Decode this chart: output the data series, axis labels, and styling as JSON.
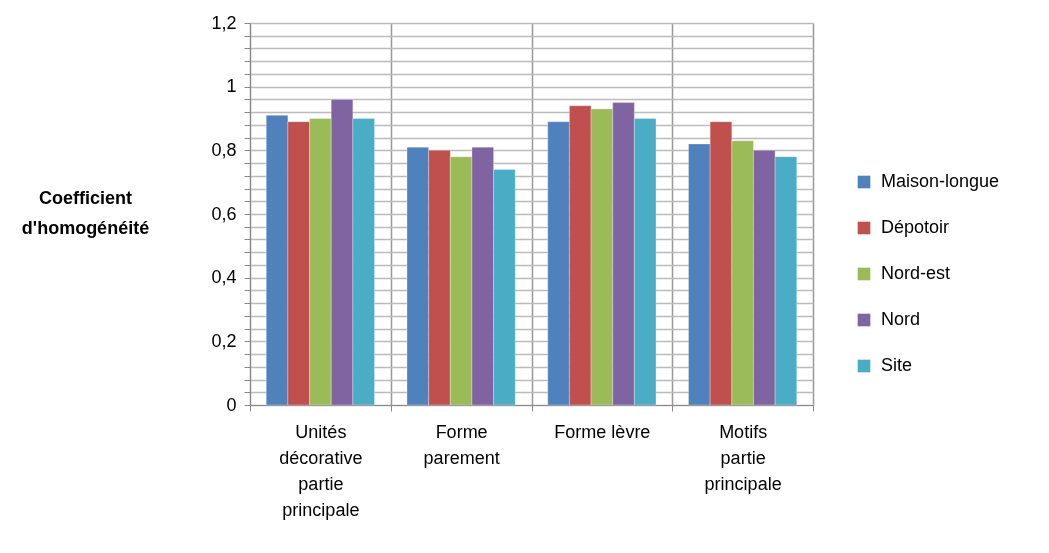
{
  "chart_data": {
    "type": "bar",
    "ylabel": "Coefficient d'homogénéité",
    "categories": [
      "Unités décorative partie principale",
      "Forme parement",
      "Forme lèvre",
      "Motifs partie principale"
    ],
    "series": [
      {
        "name": "Maison-longue",
        "color": "#4f81bd",
        "values": [
          0.91,
          0.81,
          0.89,
          0.82
        ]
      },
      {
        "name": "Dépotoir",
        "color": "#c0504d",
        "values": [
          0.89,
          0.8,
          0.94,
          0.89
        ]
      },
      {
        "name": "Nord-est",
        "color": "#9bbb59",
        "values": [
          0.9,
          0.78,
          0.93,
          0.83
        ]
      },
      {
        "name": "Nord",
        "color": "#8064a2",
        "values": [
          0.96,
          0.81,
          0.95,
          0.8
        ]
      },
      {
        "name": "Site",
        "color": "#4bacc6",
        "values": [
          0.9,
          0.74,
          0.9,
          0.78
        ]
      }
    ],
    "ylim": [
      0,
      1.2
    ],
    "yticks": [
      0,
      {
        "value": 0.04,
        "label": null
      },
      {
        "value": 0.08,
        "label": null
      },
      {
        "value": 0.12,
        "label": null
      },
      {
        "value": 0.16,
        "label": null
      },
      {
        "value": 0.2,
        "label": "0,2"
      },
      {
        "value": 0.24,
        "label": null
      },
      {
        "value": 0.28,
        "label": null
      },
      {
        "value": 0.32,
        "label": null
      },
      {
        "value": 0.36,
        "label": null
      },
      {
        "value": 0.4,
        "label": "0,4"
      },
      {
        "value": 0.44,
        "label": null
      },
      {
        "value": 0.48,
        "label": null
      },
      {
        "value": 0.52,
        "label": null
      },
      {
        "value": 0.56,
        "label": null
      },
      {
        "value": 0.6,
        "label": "0,6"
      },
      {
        "value": 0.64,
        "label": null
      },
      {
        "value": 0.68,
        "label": null
      },
      {
        "value": 0.72,
        "label": null
      },
      {
        "value": 0.76,
        "label": null
      },
      {
        "value": 0.8,
        "label": "0,8"
      },
      {
        "value": 0.84,
        "label": null
      },
      {
        "value": 0.88,
        "label": null
      },
      {
        "value": 0.92,
        "label": null
      },
      {
        "value": 0.96,
        "label": null
      },
      1,
      {
        "value": 1.04,
        "label": null
      },
      {
        "value": 1.08,
        "label": null
      },
      {
        "value": 1.12,
        "label": null
      },
      {
        "value": 1.16,
        "label": null
      },
      {
        "value": 1.2,
        "label": "1,2"
      }
    ],
    "grid": true,
    "legend": "right"
  }
}
